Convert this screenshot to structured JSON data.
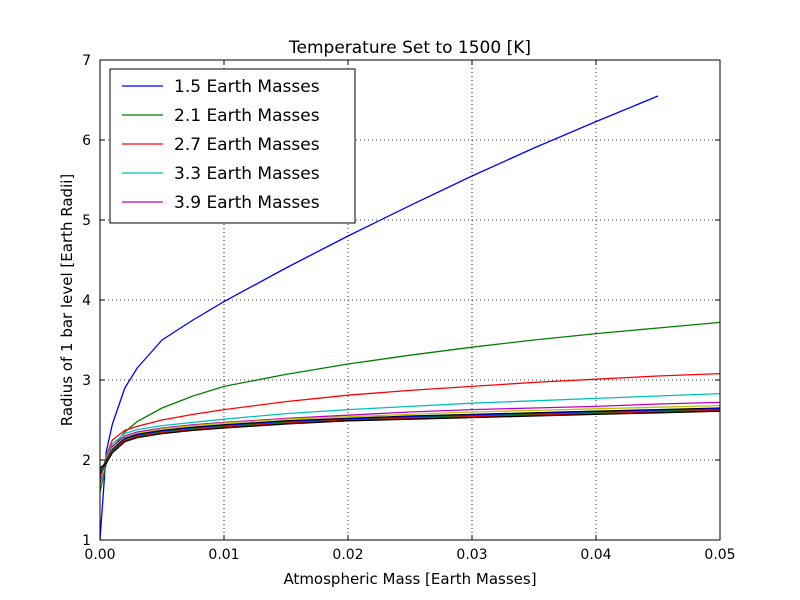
{
  "chart_data": {
    "type": "line",
    "title": "Temperature Set to 1500 [K]",
    "xlabel": "Atmospheric Mass [Earth Masses]",
    "ylabel": "Radius of 1 bar level [Earth Radii]",
    "xlim": [
      0.0,
      0.05
    ],
    "ylim": [
      1,
      7
    ],
    "xticks": [
      0.0,
      0.01,
      0.02,
      0.03,
      0.04,
      0.05
    ],
    "xtick_labels": [
      "0.00",
      "0.01",
      "0.02",
      "0.03",
      "0.04",
      "0.05"
    ],
    "yticks": [
      1,
      2,
      3,
      4,
      5,
      6,
      7
    ],
    "ytick_labels": [
      "1",
      "2",
      "3",
      "4",
      "5",
      "6",
      "7"
    ],
    "grid": true,
    "legend_position": "top-left",
    "series": [
      {
        "name": "1.5 Earth Masses",
        "color": "#0000ff",
        "x": [
          0,
          0.0005,
          0.001,
          0.002,
          0.003,
          0.005,
          0.0075,
          0.01,
          0.015,
          0.02,
          0.025,
          0.03,
          0.035,
          0.04,
          0.045
        ],
        "y": [
          1.0,
          2.1,
          2.45,
          2.9,
          3.15,
          3.5,
          3.75,
          3.98,
          4.4,
          4.8,
          5.18,
          5.55,
          5.9,
          6.23,
          6.55
        ]
      },
      {
        "name": "2.1 Earth Masses",
        "color": "#008000",
        "x": [
          0,
          0.0005,
          0.001,
          0.002,
          0.003,
          0.005,
          0.0075,
          0.01,
          0.015,
          0.02,
          0.025,
          0.03,
          0.035,
          0.04,
          0.045,
          0.05
        ],
        "y": [
          1.6,
          1.95,
          2.15,
          2.35,
          2.48,
          2.65,
          2.8,
          2.92,
          3.07,
          3.2,
          3.31,
          3.41,
          3.5,
          3.58,
          3.65,
          3.72
        ]
      },
      {
        "name": "2.7 Earth Masses",
        "color": "#ff0000",
        "x": [
          0,
          0.0005,
          0.001,
          0.002,
          0.003,
          0.005,
          0.0075,
          0.01,
          0.015,
          0.02,
          0.025,
          0.03,
          0.035,
          0.04,
          0.045,
          0.05
        ],
        "y": [
          1.7,
          2.05,
          2.25,
          2.37,
          2.42,
          2.5,
          2.57,
          2.63,
          2.73,
          2.81,
          2.87,
          2.92,
          2.97,
          3.01,
          3.05,
          3.08
        ]
      },
      {
        "name": "3.3 Earth Masses",
        "color": "#00bfbf",
        "x": [
          0,
          0.0005,
          0.001,
          0.002,
          0.003,
          0.005,
          0.0075,
          0.01,
          0.015,
          0.02,
          0.025,
          0.03,
          0.035,
          0.04,
          0.045,
          0.05
        ],
        "y": [
          1.75,
          2.05,
          2.2,
          2.33,
          2.38,
          2.43,
          2.47,
          2.51,
          2.58,
          2.63,
          2.67,
          2.71,
          2.74,
          2.77,
          2.8,
          2.83
        ]
      },
      {
        "name": "3.9 Earth Masses",
        "color": "#bf00bf",
        "x": [
          0,
          0.0005,
          0.001,
          0.002,
          0.003,
          0.005,
          0.0075,
          0.01,
          0.015,
          0.02,
          0.025,
          0.03,
          0.035,
          0.04,
          0.045,
          0.05
        ],
        "y": [
          1.78,
          2.03,
          2.17,
          2.3,
          2.35,
          2.4,
          2.44,
          2.47,
          2.52,
          2.56,
          2.6,
          2.63,
          2.65,
          2.67,
          2.7,
          2.72
        ]
      },
      {
        "color": "#bfbf00",
        "x": [
          0,
          0.0005,
          0.001,
          0.002,
          0.003,
          0.005,
          0.0075,
          0.01,
          0.015,
          0.02,
          0.025,
          0.03,
          0.035,
          0.04,
          0.045,
          0.05
        ],
        "y": [
          1.8,
          2.02,
          2.15,
          2.28,
          2.33,
          2.39,
          2.43,
          2.46,
          2.51,
          2.54,
          2.57,
          2.6,
          2.62,
          2.64,
          2.66,
          2.68
        ]
      },
      {
        "color": "#000000",
        "x": [
          0,
          0.0005,
          0.001,
          0.002,
          0.003,
          0.005,
          0.0075,
          0.01,
          0.015,
          0.02,
          0.025,
          0.03,
          0.035,
          0.04,
          0.045,
          0.05
        ],
        "y": [
          1.82,
          2.0,
          2.13,
          2.27,
          2.32,
          2.37,
          2.41,
          2.44,
          2.49,
          2.52,
          2.55,
          2.57,
          2.59,
          2.61,
          2.63,
          2.65
        ]
      },
      {
        "color": "#0000ff",
        "x": [
          0,
          0.0005,
          0.001,
          0.002,
          0.003,
          0.005,
          0.0075,
          0.01,
          0.015,
          0.02,
          0.025,
          0.03,
          0.035,
          0.04,
          0.045,
          0.05
        ],
        "y": [
          1.84,
          1.99,
          2.12,
          2.26,
          2.31,
          2.36,
          2.4,
          2.43,
          2.48,
          2.51,
          2.54,
          2.56,
          2.58,
          2.6,
          2.62,
          2.64
        ]
      },
      {
        "color": "#008000",
        "x": [
          0,
          0.0005,
          0.001,
          0.002,
          0.003,
          0.005,
          0.0075,
          0.01,
          0.015,
          0.02,
          0.025,
          0.03,
          0.035,
          0.04,
          0.045,
          0.05
        ],
        "y": [
          1.86,
          1.98,
          2.11,
          2.25,
          2.3,
          2.35,
          2.39,
          2.42,
          2.47,
          2.5,
          2.53,
          2.55,
          2.57,
          2.59,
          2.61,
          2.63
        ]
      },
      {
        "color": "#ff0000",
        "x": [
          0,
          0.0005,
          0.001,
          0.002,
          0.003,
          0.005,
          0.0075,
          0.01,
          0.015,
          0.02,
          0.025,
          0.03,
          0.035,
          0.04,
          0.045,
          0.05
        ],
        "y": [
          1.88,
          1.97,
          2.1,
          2.24,
          2.29,
          2.34,
          2.38,
          2.41,
          2.46,
          2.5,
          2.52,
          2.54,
          2.56,
          2.58,
          2.6,
          2.62
        ]
      },
      {
        "color": "#000000",
        "x": [
          0,
          0.0005,
          0.001,
          0.002,
          0.003,
          0.005,
          0.0075,
          0.01,
          0.015,
          0.02,
          0.025,
          0.03,
          0.035,
          0.04,
          0.045,
          0.05
        ],
        "y": [
          1.9,
          1.96,
          2.09,
          2.23,
          2.28,
          2.33,
          2.37,
          2.4,
          2.45,
          2.49,
          2.51,
          2.53,
          2.55,
          2.57,
          2.59,
          2.61
        ]
      }
    ]
  }
}
